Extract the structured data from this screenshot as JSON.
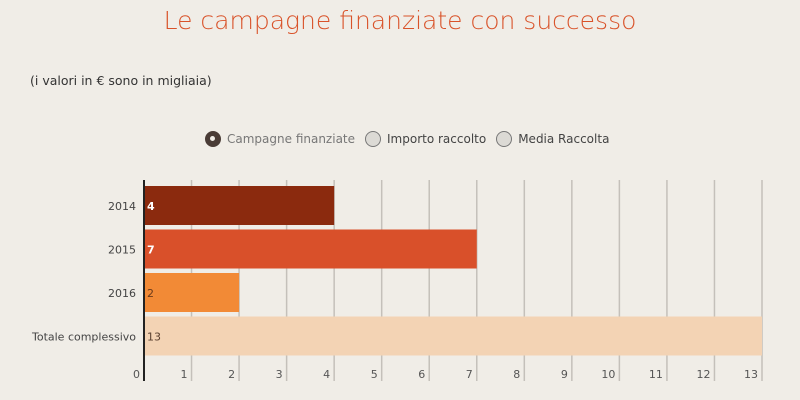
{
  "chart_data": {
    "type": "bar",
    "orientation": "horizontal",
    "title": "Le campagne finanziate con successo",
    "subtitle": "(i valori in € sono in migliaia)",
    "categories": [
      "2014",
      "2015",
      "2016",
      "Totale complessivo"
    ],
    "values": [
      4,
      7,
      2,
      13
    ],
    "colors": [
      "#8b2a0e",
      "#d9502a",
      "#f28a36",
      "#f3d3b4"
    ],
    "label_colors": [
      "#ffffff",
      "#ffffff",
      "#6b3a1a",
      "#5a4030"
    ],
    "xlim": [
      0,
      13
    ],
    "xticks": [
      0,
      1,
      2,
      3,
      4,
      5,
      6,
      7,
      8,
      9,
      10,
      11,
      12,
      13
    ],
    "grid": true
  },
  "legend": {
    "options": [
      {
        "label": "Campagne finanziate",
        "selected": true
      },
      {
        "label": "Importo raccolto",
        "selected": false
      },
      {
        "label": "Media Raccolta",
        "selected": false
      }
    ]
  }
}
